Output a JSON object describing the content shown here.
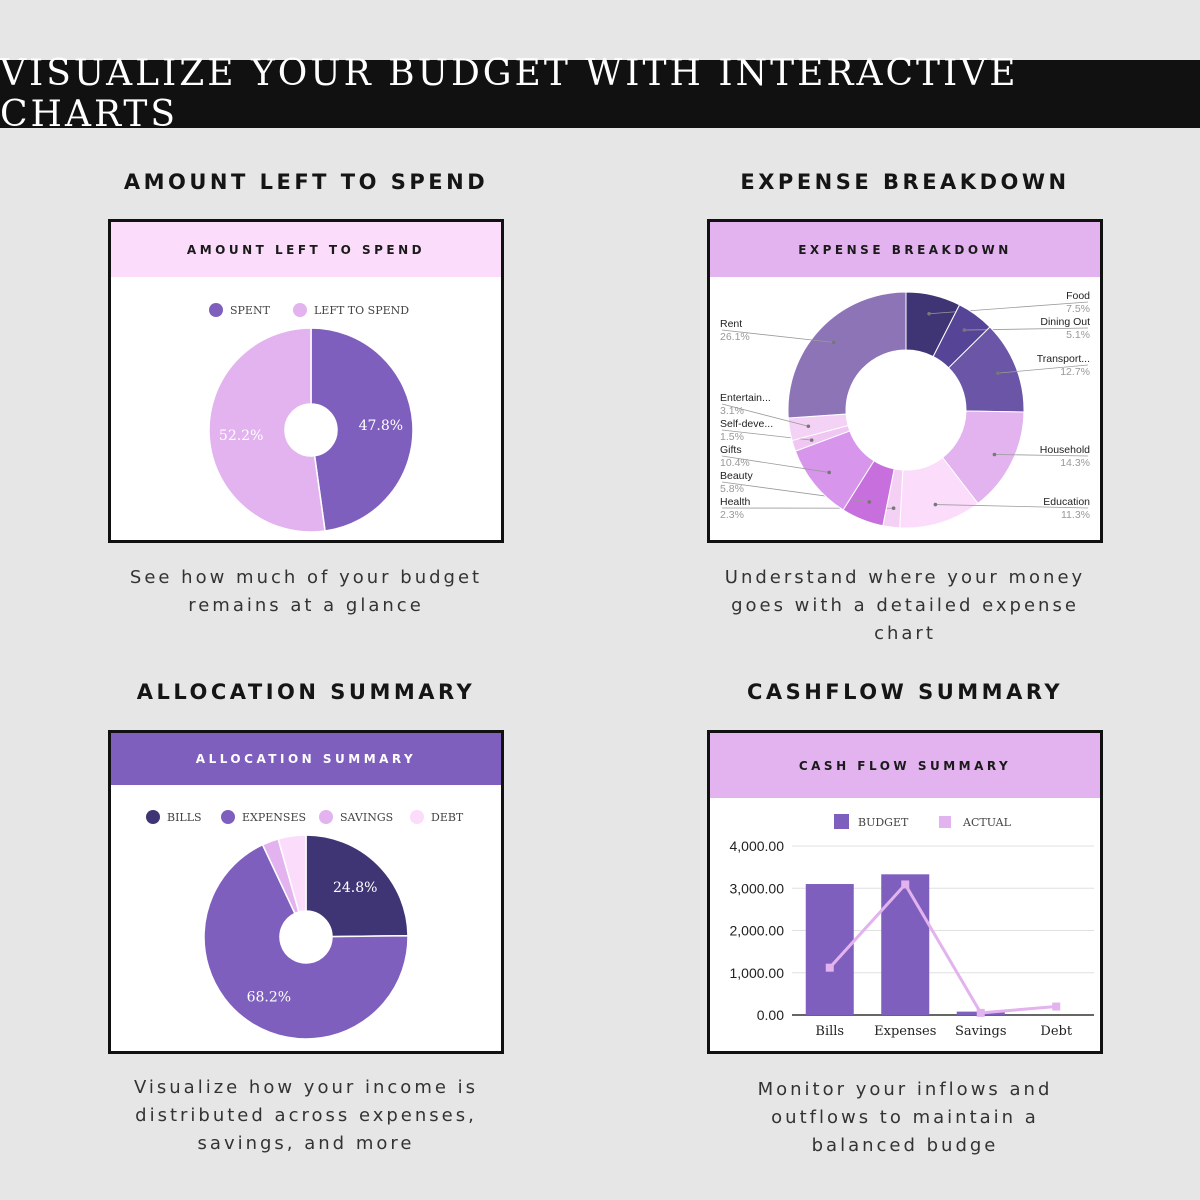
{
  "banner": "VISUALIZE YOUR BUDGET WITH INTERACTIVE CHARTS",
  "sections": [
    {
      "title": "AMOUNT LEFT TO SPEND",
      "card_title": "AMOUNT LEFT TO SPEND",
      "caption": [
        "See how much of your budget",
        "remains at a glance"
      ]
    },
    {
      "title": "EXPENSE BREAKDOWN",
      "card_title": "EXPENSE BREAKDOWN",
      "caption": [
        "Understand where your money",
        "goes with a detailed expense",
        "chart"
      ]
    },
    {
      "title": "ALLOCATION SUMMARY",
      "card_title": "ALLOCATION SUMMARY",
      "caption": [
        "Visualize how your income is",
        "distributed across expenses,",
        "savings, and more"
      ]
    },
    {
      "title": "CASHFLOW SUMMARY",
      "card_title": "CASH FLOW SUMMARY",
      "caption": [
        "Monitor your inflows and",
        "outflows to maintain a",
        "balanced budge"
      ]
    }
  ],
  "colors": {
    "pink_light": "#fbdcfb",
    "lavender": "#e2b3ee",
    "purple": "#7f5fbd",
    "dark_purple": "#3f3574",
    "banner_bg": "#111111"
  },
  "chart_data": [
    {
      "type": "pie",
      "title": "AMOUNT LEFT TO SPEND",
      "legend": "top",
      "slices": [
        {
          "label": "SPENT",
          "value": 47.8,
          "display": "47.8%",
          "color": "#7f5fbd"
        },
        {
          "label": "LEFT TO SPEND",
          "value": 52.2,
          "display": "52.2%",
          "color": "#e2b3ee"
        }
      ]
    },
    {
      "type": "pie",
      "title": "EXPENSE BREAKDOWN",
      "legend": "labels",
      "slices": [
        {
          "label": "Food",
          "value": 7.5,
          "display": "7.5%",
          "color": "#3f3574"
        },
        {
          "label": "Dining Out",
          "value": 5.1,
          "display": "5.1%",
          "color": "#564597"
        },
        {
          "label": "Transport...",
          "value": 12.7,
          "display": "12.7%",
          "color": "#6a55a6"
        },
        {
          "label": "Household",
          "value": 14.3,
          "display": "14.3%",
          "color": "#e2b3ee"
        },
        {
          "label": "Education",
          "value": 11.3,
          "display": "11.3%",
          "color": "#fbdcfb"
        },
        {
          "label": "Health",
          "value": 2.3,
          "display": "2.3%",
          "color": "#f5d0f5"
        },
        {
          "label": "Beauty",
          "value": 5.8,
          "display": "5.8%",
          "color": "#c76fdc"
        },
        {
          "label": "Gifts",
          "value": 10.4,
          "display": "10.4%",
          "color": "#d795eb"
        },
        {
          "label": "Self-deve...",
          "value": 1.5,
          "display": "1.5%",
          "color": "#f0c6f3"
        },
        {
          "label": "Entertain...",
          "value": 3.1,
          "display": "3.1%",
          "color": "#f3d2f5"
        },
        {
          "label": "Rent",
          "value": 26.1,
          "display": "26.1%",
          "color": "#8c74b6"
        }
      ]
    },
    {
      "type": "pie",
      "title": "ALLOCATION SUMMARY",
      "legend": "top",
      "slices": [
        {
          "label": "BILLS",
          "value": 24.8,
          "display": "24.8%",
          "color": "#3f3574"
        },
        {
          "label": "EXPENSES",
          "value": 68.2,
          "display": "68.2%",
          "color": "#7f5fbd"
        },
        {
          "label": "SAVINGS",
          "value": 2.6,
          "display": "",
          "color": "#e2b3ee"
        },
        {
          "label": "DEBT",
          "value": 4.4,
          "display": "",
          "color": "#fbdcfb"
        }
      ]
    },
    {
      "type": "bar",
      "title": "CASH FLOW SUMMARY",
      "legend": "top",
      "categories": [
        "Bills",
        "Expenses",
        "Savings",
        "Debt"
      ],
      "ylim": [
        0,
        4000
      ],
      "yticks": [
        "0.00",
        "1,000.00",
        "2,000.00",
        "3,000.00",
        "4,000.00"
      ],
      "series": [
        {
          "name": "BUDGET",
          "kind": "bar",
          "color": "#7f5fbd",
          "values": [
            3100,
            3330,
            80,
            0
          ]
        },
        {
          "name": "ACTUAL",
          "kind": "line",
          "color": "#e2b3ee",
          "values": [
            1120,
            3090,
            50,
            200
          ]
        }
      ]
    }
  ]
}
